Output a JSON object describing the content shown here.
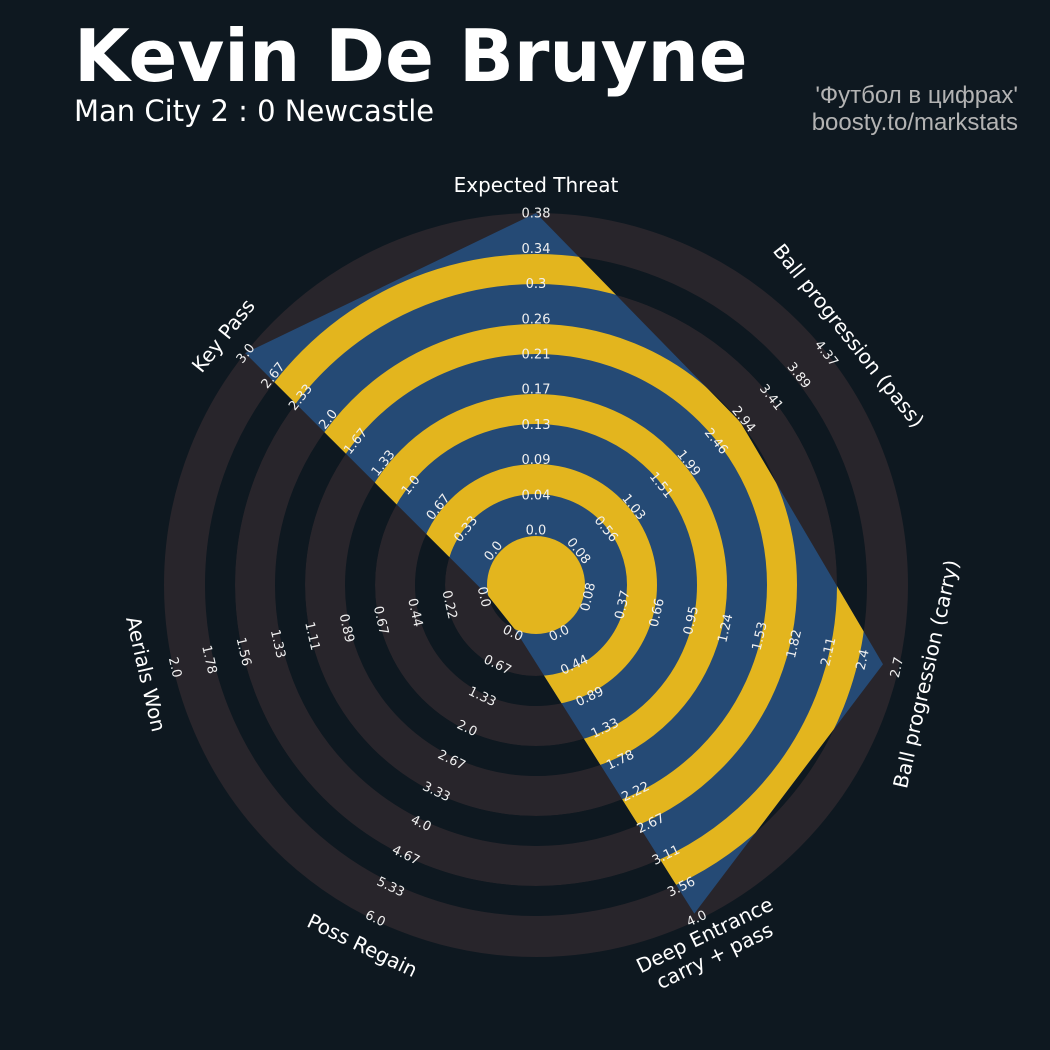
{
  "header": {
    "title": "Kevin De Bruyne",
    "subtitle": "Man City 2 : 0 Newcastle",
    "credit_line1": "'Футбол в цифрах'",
    "credit_line2": "boosty.to/markstats"
  },
  "colors": {
    "background": "#0e1820",
    "ring_outside": "#28252b",
    "ring_outside_alt": "#0e1820",
    "polygon_fill": "#254a75",
    "ring_inside_alt": "#e3b51e"
  },
  "chart_data": {
    "type": "radar",
    "params": [
      {
        "label": [
          "Expected Threat"
        ],
        "min": 0.0,
        "max": 0.38,
        "value": 0.38,
        "ticks": [
          "0.0",
          "0.04",
          "0.09",
          "0.13",
          "0.17",
          "0.21",
          "0.26",
          "0.3",
          "0.34",
          "0.38"
        ]
      },
      {
        "label": [
          "Ball progression (pass)"
        ],
        "min": 0.08,
        "max": 4.37,
        "value": 2.9,
        "ticks": [
          "0.08",
          "0.56",
          "1.03",
          "1.51",
          "1.99",
          "2.46",
          "2.94",
          "3.41",
          "3.89",
          "4.37"
        ]
      },
      {
        "label": [
          "Ball progression (carry)"
        ],
        "min": 0.08,
        "max": 2.7,
        "value": 2.57,
        "ticks": [
          "0.08",
          "0.37",
          "0.66",
          "0.95",
          "1.24",
          "1.53",
          "1.82",
          "2.11",
          "2.4",
          "2.7"
        ]
      },
      {
        "label": [
          "Deep Entrance",
          "carry + pass"
        ],
        "min": 0.0,
        "max": 4.0,
        "value": 3.91,
        "ticks": [
          "0.0",
          "0.44",
          "0.89",
          "1.33",
          "1.78",
          "2.22",
          "2.67",
          "3.11",
          "3.56",
          "4.0"
        ]
      },
      {
        "label": [
          "Poss Regain"
        ],
        "min": 0.0,
        "max": 6.0,
        "value": 0.0,
        "ticks": [
          "0.0",
          "0.67",
          "1.33",
          "2.0",
          "2.67",
          "3.33",
          "4.0",
          "4.67",
          "5.33",
          "6.0"
        ]
      },
      {
        "label": [
          "Aerials Won"
        ],
        "min": 0.0,
        "max": 2.0,
        "value": 0.0,
        "ticks": [
          "0.0",
          "0.22",
          "0.44",
          "0.67",
          "0.89",
          "1.11",
          "1.33",
          "1.56",
          "1.78",
          "2.0"
        ]
      },
      {
        "label": [
          "Key Pass"
        ],
        "min": 0.0,
        "max": 3.0,
        "value": 3.0,
        "ticks": [
          "0.0",
          "0.33",
          "0.67",
          "1.0",
          "1.33",
          "1.67",
          "2.0",
          "2.33",
          "2.67",
          "3.0"
        ]
      }
    ]
  }
}
